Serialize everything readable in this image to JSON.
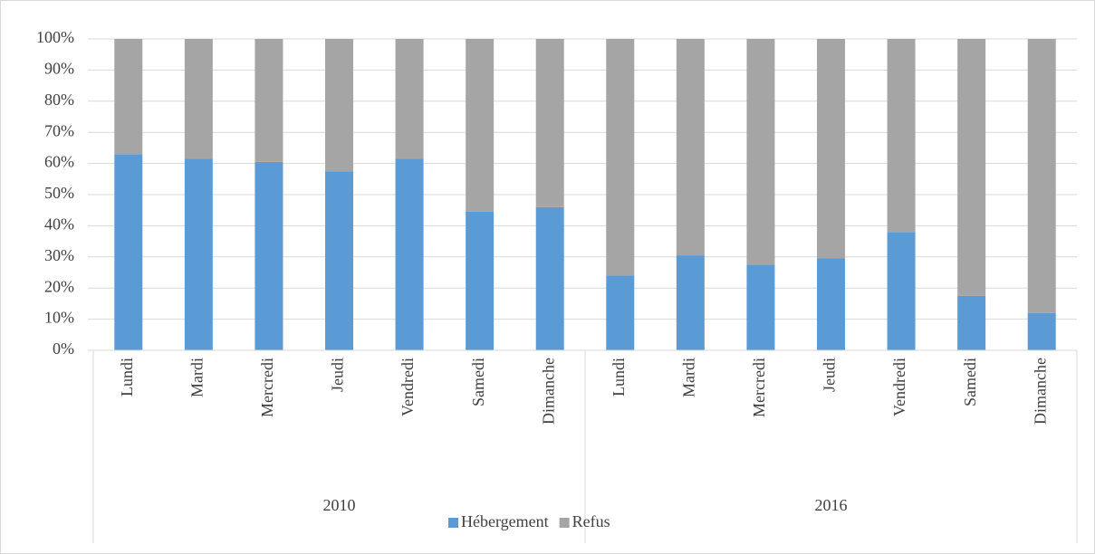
{
  "chart_data": {
    "type": "stacked_bar_100",
    "groups": [
      {
        "label": "2010",
        "categories": [
          "Lundi",
          "Mardi",
          "Mercredi",
          "Jeudi",
          "Vendredi",
          "Samedi",
          "Dimanche"
        ]
      },
      {
        "label": "2016",
        "categories": [
          "Lundi",
          "Mardi",
          "Mercredi",
          "Jeudi",
          "Vendredi",
          "Samedi",
          "Dimanche"
        ]
      }
    ],
    "series": [
      {
        "name": "Hébergement",
        "color": "#5b9bd5",
        "values": [
          63,
          61.5,
          60.5,
          57.5,
          61.5,
          44.5,
          46,
          24,
          30.5,
          27.5,
          29.5,
          38,
          17.5,
          12
        ]
      },
      {
        "name": "Refus",
        "color": "#a5a5a5",
        "values": [
          37,
          38.5,
          39.5,
          42.5,
          38.5,
          55.5,
          54,
          76,
          69.5,
          72.5,
          70.5,
          62,
          82.5,
          88
        ]
      }
    ],
    "ylim": [
      0,
      100
    ],
    "yticks": [
      {
        "value": 0,
        "label": "0%"
      },
      {
        "value": 10,
        "label": "10%"
      },
      {
        "value": 20,
        "label": "20%"
      },
      {
        "value": 30,
        "label": "30%"
      },
      {
        "value": 40,
        "label": "40%"
      },
      {
        "value": 50,
        "label": "50%"
      },
      {
        "value": 60,
        "label": "60%"
      },
      {
        "value": 70,
        "label": "70%"
      },
      {
        "value": 80,
        "label": "80%"
      },
      {
        "value": 90,
        "label": "90%"
      },
      {
        "value": 100,
        "label": "100%"
      }
    ],
    "grid": true,
    "legend": "bottom"
  }
}
